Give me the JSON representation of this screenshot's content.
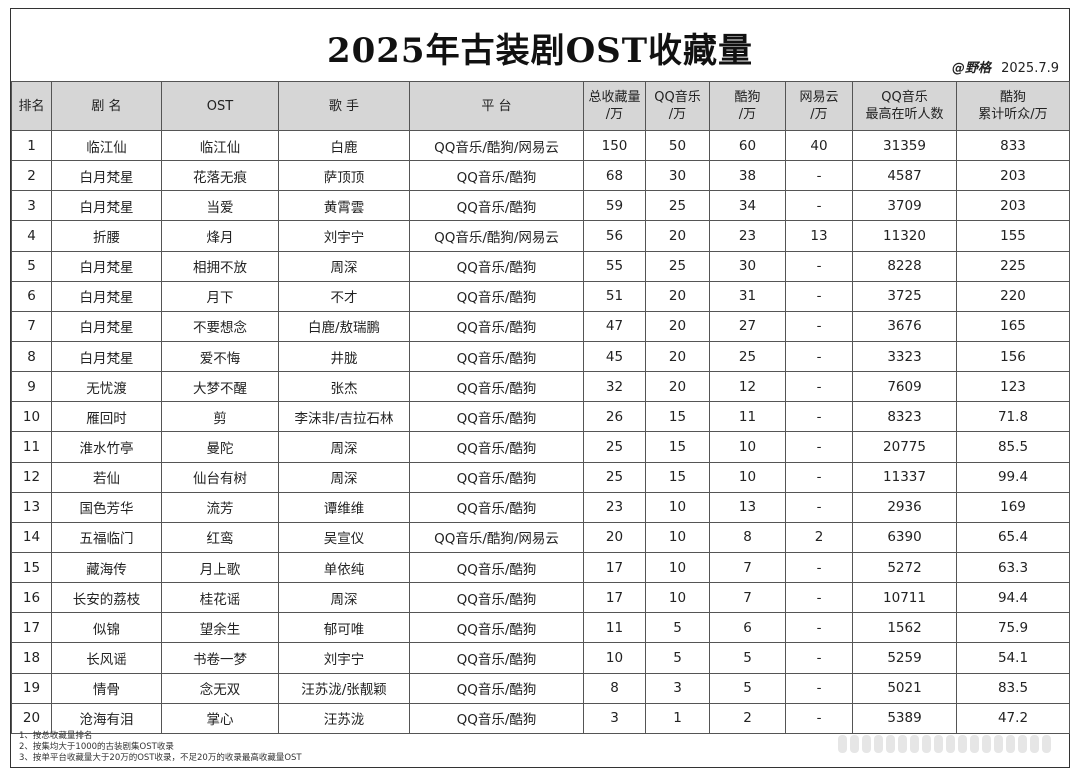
{
  "title": "2025年古装剧OST收藏量",
  "credit": {
    "author": "@野格",
    "date": "2025.7.9"
  },
  "headers": [
    [
      "排名"
    ],
    [
      "剧 名"
    ],
    [
      "OST"
    ],
    [
      "歌 手"
    ],
    [
      "平 台"
    ],
    [
      "总收藏量",
      "/万"
    ],
    [
      "QQ音乐",
      "/万"
    ],
    [
      "酷狗",
      "/万"
    ],
    [
      "网易云",
      "/万"
    ],
    [
      "QQ音乐",
      "最高在听人数"
    ],
    [
      "酷狗",
      "累计听众/万"
    ]
  ],
  "rows": [
    [
      "1",
      "临江仙",
      "临江仙",
      "白鹿",
      "QQ音乐/酷狗/网易云",
      "150",
      "50",
      "60",
      "40",
      "31359",
      "833"
    ],
    [
      "2",
      "白月梵星",
      "花落无痕",
      "萨顶顶",
      "QQ音乐/酷狗",
      "68",
      "30",
      "38",
      "-",
      "4587",
      "203"
    ],
    [
      "3",
      "白月梵星",
      "当爱",
      "黄霄雲",
      "QQ音乐/酷狗",
      "59",
      "25",
      "34",
      "-",
      "3709",
      "203"
    ],
    [
      "4",
      "折腰",
      "烽月",
      "刘宇宁",
      "QQ音乐/酷狗/网易云",
      "56",
      "20",
      "23",
      "13",
      "11320",
      "155"
    ],
    [
      "5",
      "白月梵星",
      "相拥不放",
      "周深",
      "QQ音乐/酷狗",
      "55",
      "25",
      "30",
      "-",
      "8228",
      "225"
    ],
    [
      "6",
      "白月梵星",
      "月下",
      "不才",
      "QQ音乐/酷狗",
      "51",
      "20",
      "31",
      "-",
      "3725",
      "220"
    ],
    [
      "7",
      "白月梵星",
      "不要想念",
      "白鹿/敖瑞鹏",
      "QQ音乐/酷狗",
      "47",
      "20",
      "27",
      "-",
      "3676",
      "165"
    ],
    [
      "8",
      "白月梵星",
      "爱不悔",
      "井胧",
      "QQ音乐/酷狗",
      "45",
      "20",
      "25",
      "-",
      "3323",
      "156"
    ],
    [
      "9",
      "无忧渡",
      "大梦不醒",
      "张杰",
      "QQ音乐/酷狗",
      "32",
      "20",
      "12",
      "-",
      "7609",
      "123"
    ],
    [
      "10",
      "雁回时",
      "剪",
      "李沫非/吉拉石林",
      "QQ音乐/酷狗",
      "26",
      "15",
      "11",
      "-",
      "8323",
      "71.8"
    ],
    [
      "11",
      "淮水竹亭",
      "曼陀",
      "周深",
      "QQ音乐/酷狗",
      "25",
      "15",
      "10",
      "-",
      "20775",
      "85.5"
    ],
    [
      "12",
      "若仙",
      "仙台有树",
      "周深",
      "QQ音乐/酷狗",
      "25",
      "15",
      "10",
      "-",
      "11337",
      "99.4"
    ],
    [
      "13",
      "国色芳华",
      "流芳",
      "谭维维",
      "QQ音乐/酷狗",
      "23",
      "10",
      "13",
      "-",
      "2936",
      "169"
    ],
    [
      "14",
      "五福临门",
      "红鸾",
      "吴宣仪",
      "QQ音乐/酷狗/网易云",
      "20",
      "10",
      "8",
      "2",
      "6390",
      "65.4"
    ],
    [
      "15",
      "藏海传",
      "月上歌",
      "单依纯",
      "QQ音乐/酷狗",
      "17",
      "10",
      "7",
      "-",
      "5272",
      "63.3"
    ],
    [
      "16",
      "长安的荔枝",
      "桂花谣",
      "周深",
      "QQ音乐/酷狗",
      "17",
      "10",
      "7",
      "-",
      "10711",
      "94.4"
    ],
    [
      "17",
      "似锦",
      "望余生",
      "郁可唯",
      "QQ音乐/酷狗",
      "11",
      "5",
      "6",
      "-",
      "1562",
      "75.9"
    ],
    [
      "18",
      "长风谣",
      "书卷一梦",
      "刘宇宁",
      "QQ音乐/酷狗",
      "10",
      "5",
      "5",
      "-",
      "5259",
      "54.1"
    ],
    [
      "19",
      "情骨",
      "念无双",
      "汪苏泷/张靓颖",
      "QQ音乐/酷狗",
      "8",
      "3",
      "5",
      "-",
      "5021",
      "83.5"
    ],
    [
      "20",
      "沧海有泪",
      "掌心",
      "汪苏泷",
      "QQ音乐/酷狗",
      "3",
      "1",
      "2",
      "-",
      "5389",
      "47.2"
    ]
  ],
  "notes": [
    "1、按总收藏量排名",
    "2、按集均大于1000的古装剧集OST收录",
    "3、按单平台收藏量大于20万的OST收录，不足20万的收录最高收藏量OST"
  ]
}
